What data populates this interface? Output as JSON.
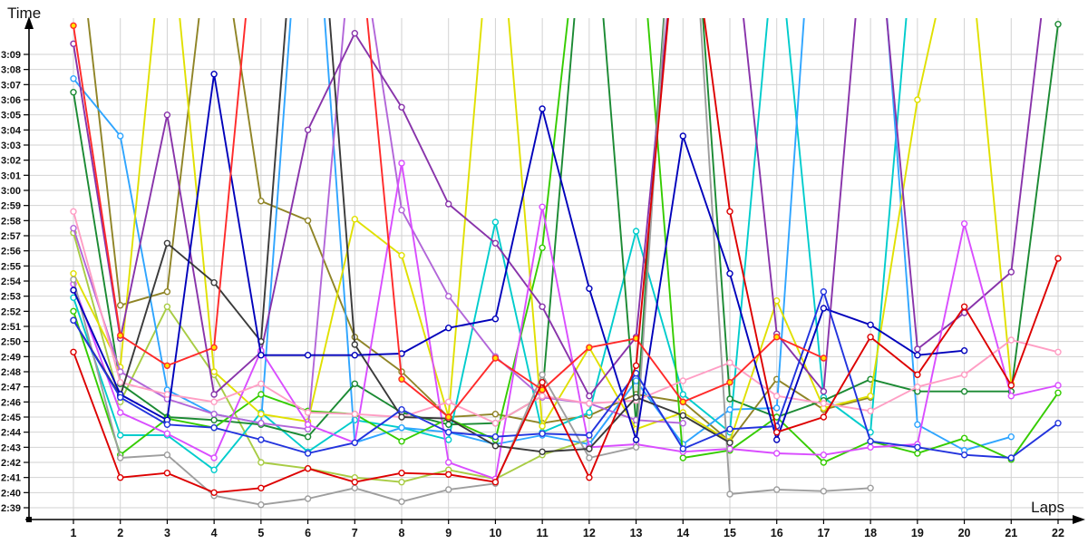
{
  "chart_data": {
    "type": "line",
    "title": "",
    "xlabel": "Laps",
    "ylabel": "Time",
    "x": [
      1,
      2,
      3,
      4,
      5,
      6,
      7,
      8,
      9,
      10,
      11,
      12,
      13,
      14,
      15,
      16,
      17,
      18,
      19,
      20,
      21,
      22
    ],
    "x_tick_labels": [
      "1",
      "2",
      "3",
      "4",
      "5",
      "6",
      "7",
      "8",
      "9",
      "10",
      "11",
      "12",
      "13",
      "14",
      "15",
      "16",
      "17",
      "18",
      "19",
      "20",
      "21",
      "22"
    ],
    "y_axis_unit": "minutes:seconds lap time",
    "y_tick_seconds": [
      159,
      160,
      161,
      162,
      163,
      164,
      165,
      166,
      167,
      168,
      169,
      170,
      171,
      172,
      173,
      174,
      175,
      176,
      177,
      178,
      179,
      180,
      181,
      182,
      183,
      184,
      185,
      186,
      187,
      188,
      189
    ],
    "y_tick_labels": [
      "2:39",
      "2:40",
      "2:41",
      "2:42",
      "2:43",
      "2:44",
      "2:45",
      "2:46",
      "2:47",
      "2:48",
      "2:49",
      "2:50",
      "2:51",
      "2:52",
      "2:53",
      "2:54",
      "2:55",
      "2:56",
      "2:57",
      "2:58",
      "2:59",
      "3:00",
      "3:01",
      "3:02",
      "3:03",
      "3:04",
      "3:05",
      "3:06",
      "3:07",
      "3:08",
      "3:09"
    ],
    "ylim_seconds": [
      159,
      189
    ],
    "grid": true,
    "legend_position": "none",
    "clip_note": "values above ~3:11 run off the top of the plot (pit/out laps)",
    "series": [
      {
        "name": "yellow-green",
        "color": "#a8cc44",
        "marker_fill": "#ffffff",
        "values_seconds": [
          177.2,
          166.0,
          172.3,
          167.8,
          162.0,
          161.6,
          161.0,
          160.7,
          161.5,
          160.9,
          162.5,
          163.5,
          null,
          null,
          null,
          null,
          null,
          null,
          null,
          null,
          null,
          null
        ]
      },
      {
        "name": "olive",
        "color": "#8f8426",
        "marker_fill": "#ffffff",
        "values_seconds": [
          200,
          172.4,
          173.3,
          200,
          179.3,
          178.0,
          170.3,
          168.0,
          165.0,
          165.2,
          164.6,
          165.1,
          166.5,
          166.0,
          163.4,
          167.5,
          165.5,
          166.3,
          null,
          null,
          null,
          null
        ]
      },
      {
        "name": "turquoise",
        "color": "#00cccc",
        "marker_fill": "#ffffff",
        "values_seconds": [
          172.9,
          163.8,
          163.8,
          161.5,
          165.3,
          162.7,
          164.8,
          164.3,
          163.5,
          177.9,
          164.0,
          165.3,
          177.3,
          166.5,
          164.0,
          198,
          166.3,
          164.0,
          200,
          null,
          null,
          null
        ]
      },
      {
        "name": "sky-blue",
        "color": "#2fa5ff",
        "marker_fill": "#ffffff",
        "values_seconds": [
          187.4,
          183.6,
          166.8,
          165.2,
          164.6,
          207,
          163.3,
          164.3,
          164.0,
          163.2,
          163.8,
          163.2,
          167.4,
          163.2,
          165.5,
          165.6,
          210,
          206,
          164.5,
          162.8,
          163.7,
          null
        ]
      },
      {
        "name": "forest-green",
        "color": "#1b8a33",
        "marker_fill": "#ffffff",
        "values_seconds": [
          186.5,
          167.2,
          165.0,
          164.8,
          164.5,
          163.7,
          167.2,
          165.3,
          164.5,
          164.6,
          166.4,
          203,
          164.5,
          210,
          166.2,
          165.0,
          166.1,
          167.5,
          166.7,
          166.7,
          166.7,
          191.0
        ]
      },
      {
        "name": "lime-green",
        "color": "#35cc00",
        "marker_fill": "#ffffff",
        "values_seconds": [
          172.0,
          162.5,
          164.9,
          164.3,
          166.5,
          165.4,
          165.2,
          163.4,
          164.9,
          163.5,
          176.2,
          204,
          201,
          162.3,
          162.8,
          165.0,
          162.0,
          163.4,
          162.6,
          163.6,
          162.2,
          166.6
        ]
      },
      {
        "name": "yellow",
        "color": "#e0e000",
        "marker_fill": "#ffffff",
        "values_seconds": [
          174.5,
          168.3,
          200,
          168.0,
          165.2,
          164.7,
          178.1,
          175.7,
          165.0,
          202,
          164.4,
          169.6,
          164.2,
          165.3,
          163.4,
          172.7,
          165.6,
          166.4,
          186.0,
          200,
          167.2,
          null
        ]
      },
      {
        "name": "light-purple",
        "color": "#b266d9",
        "marker_fill": "#ffffff",
        "values_seconds": [
          177.5,
          168.0,
          166.2,
          165.2,
          164.6,
          164.2,
          199,
          178.7,
          173.0,
          169.0,
          166.3,
          165.9,
          164.8,
          164.6,
          null,
          null,
          null,
          null,
          null,
          null,
          null,
          null
        ]
      },
      {
        "name": "purple",
        "color": "#8833aa",
        "marker_fill": "#ffffff",
        "values_seconds": [
          189.7,
          170.2,
          185.0,
          166.5,
          169.3,
          184.0,
          190.4,
          185.5,
          179.1,
          176.5,
          172.3,
          166.4,
          170.3,
          202,
          200,
          170.5,
          166.7,
          203,
          169.5,
          171.9,
          174.6,
          201
        ]
      },
      {
        "name": "violet-magenta",
        "color": "#d94dff",
        "marker_fill": "#ffffff",
        "values_seconds": [
          173.8,
          165.3,
          163.9,
          162.3,
          169.4,
          164.5,
          163.3,
          181.8,
          162.0,
          160.9,
          178.9,
          163.0,
          163.2,
          162.7,
          162.9,
          162.6,
          162.5,
          163.0,
          163.2,
          177.8,
          166.4,
          167.1
        ]
      },
      {
        "name": "pink",
        "color": "#ff9ec4",
        "marker_fill": "#ffffff",
        "values_seconds": [
          178.6,
          167.3,
          166.5,
          166.0,
          167.2,
          165.3,
          165.2,
          165.0,
          166.0,
          164.6,
          166.4,
          165.9,
          166.1,
          167.4,
          168.6,
          166.4,
          165.9,
          165.4,
          167.0,
          167.8,
          170.1,
          169.3
        ]
      },
      {
        "name": "gray",
        "color": "#9e9e9e",
        "marker_fill": "#ffffff",
        "values_seconds": [
          174.1,
          162.3,
          162.5,
          159.8,
          159.2,
          159.6,
          160.3,
          159.4,
          160.2,
          160.6,
          167.8,
          162.3,
          163.0,
          210,
          159.9,
          160.2,
          160.1,
          160.3,
          null,
          null,
          null,
          null
        ]
      },
      {
        "name": "black",
        "color": "#3a3a3a",
        "marker_fill": "#ffffff",
        "values_seconds": [
          171.4,
          166.4,
          176.5,
          173.9,
          170.0,
          210,
          169.8,
          165.0,
          164.9,
          163.1,
          162.7,
          162.9,
          166.3,
          165.1,
          163.3,
          null,
          null,
          null,
          null,
          null,
          null,
          null
        ]
      },
      {
        "name": "navy-blue",
        "color": "#0000bb",
        "marker_fill": "#ffffff",
        "values_seconds": [
          173.4,
          166.5,
          164.8,
          187.7,
          169.1,
          169.1,
          169.1,
          169.2,
          170.9,
          171.5,
          185.4,
          173.5,
          163.5,
          183.6,
          174.5,
          163.5,
          172.2,
          171.1,
          169.1,
          169.4,
          null,
          null
        ]
      },
      {
        "name": "royal-blue",
        "color": "#2233dd",
        "marker_fill": "#ffffff",
        "values_seconds": [
          171.4,
          166.3,
          164.5,
          164.3,
          163.5,
          162.6,
          163.3,
          165.5,
          164.0,
          163.7,
          163.9,
          163.8,
          167.9,
          162.9,
          164.2,
          164.4,
          173.3,
          163.4,
          163.0,
          162.5,
          162.3,
          164.6
        ]
      },
      {
        "name": "crimson-red",
        "color": "#ff2a2a",
        "marker_fill": "#ffe400",
        "values_seconds": [
          190.9,
          170.4,
          168.4,
          169.6,
          202,
          204,
          200,
          167.5,
          165.0,
          168.9,
          166.8,
          169.6,
          170.2,
          166.0,
          167.3,
          170.3,
          168.9,
          null,
          null,
          null,
          null,
          null
        ]
      },
      {
        "name": "red",
        "color": "#dd0000",
        "marker_fill": "#ffffff",
        "values_seconds": [
          169.3,
          161.0,
          161.3,
          160.0,
          160.3,
          161.6,
          160.7,
          161.3,
          161.2,
          160.7,
          167.3,
          161.0,
          168.4,
          202,
          178.6,
          164.0,
          165.0,
          170.3,
          167.8,
          172.3,
          167.1,
          175.5
        ]
      }
    ]
  },
  "labels": {
    "y_axis_title": "Time",
    "x_axis_title": "Laps"
  },
  "style": {
    "background": "#ffffff",
    "grid_color": "#d2d2d2",
    "axis_color": "#000000",
    "tick_text_color": "#111111"
  }
}
